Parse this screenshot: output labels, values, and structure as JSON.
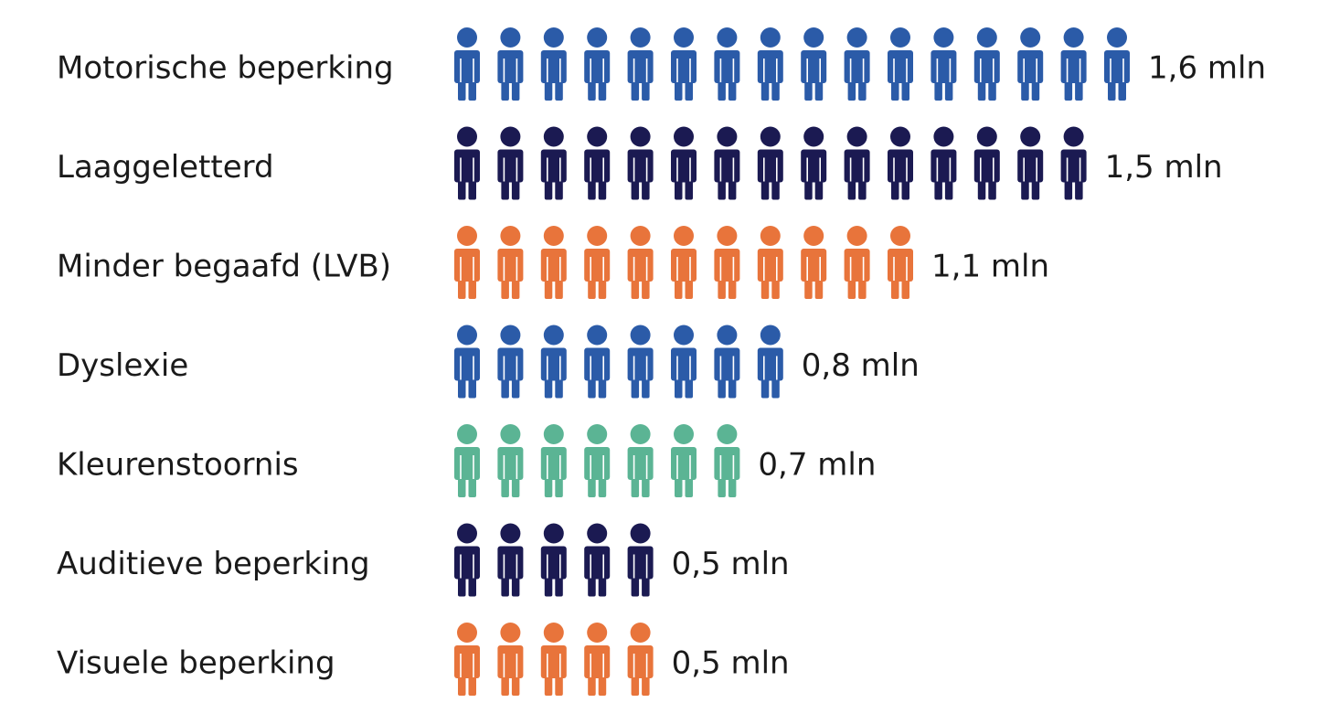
{
  "chart_data": {
    "type": "bar",
    "title": "",
    "xlabel": "",
    "ylabel": "",
    "unit": "mln",
    "categories": [
      "Motorische beperking",
      "Laaggeletterd",
      "Minder begaafd (LVB)",
      "Dyslexie",
      "Kleurenstoornis",
      "Auditieve beperking",
      "Visuele beperking"
    ],
    "values": [
      1.6,
      1.5,
      1.1,
      0.8,
      0.7,
      0.5,
      0.5
    ],
    "value_labels": [
      "1,6 mln",
      "1,5 mln",
      "1,1 mln",
      "0,8 mln",
      "0,7 mln",
      "0,5 mln",
      "0,5 mln"
    ],
    "icon_per_value": 0.1,
    "icon": "person-icon",
    "colors": [
      "#2b5ba8",
      "#1b1a52",
      "#e8743b",
      "#2b5ba8",
      "#5bb494",
      "#1b1a52",
      "#e8743b"
    ],
    "grid": false,
    "legend": "none"
  }
}
